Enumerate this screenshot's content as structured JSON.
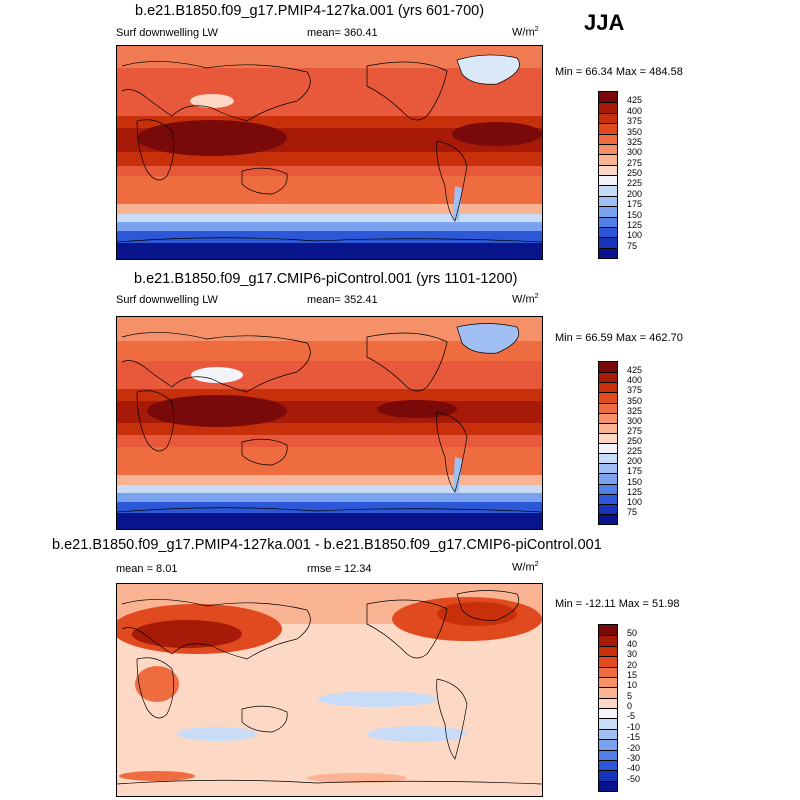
{
  "season": "JJA",
  "units_prefix": "W/m",
  "units_sup": "2",
  "panels": [
    {
      "title": "b.e21.B1850.f09_g17.PMIP4-127ka.001 (yrs 601-700)",
      "left_label": "Surf downwelling LW",
      "stat_text": "mean= 360.41",
      "minmax": "Min =  66.34 Max = 484.58"
    },
    {
      "title": "b.e21.B1850.f09_g17.CMIP6-piControl.001 (yrs 1101-1200)",
      "left_label": "Surf downwelling LW",
      "stat_text": "mean= 352.41",
      "minmax": "Min =  66.59 Max = 462.70"
    },
    {
      "title": "b.e21.B1850.f09_g17.PMIP4-127ka.001 - b.e21.B1850.f09_g17.CMIP6-piControl.001",
      "left_label": "mean =   8.01",
      "stat_text": "rmse =  12.34",
      "minmax": "Min = -12.11 Max =  51.98"
    }
  ],
  "chart_data": [
    {
      "type": "heatmap",
      "title": "b.e21.B1850.f09_g17.PMIP4-127ka.001 (yrs 601-700)",
      "variable": "Surf downwelling LW",
      "units": "W/m2",
      "mean": 360.41,
      "min": 66.34,
      "max": 484.58,
      "colorbar_levels": [
        425,
        400,
        375,
        350,
        325,
        300,
        275,
        250,
        225,
        200,
        175,
        150,
        125,
        100,
        75
      ],
      "colorbar_colors": [
        "#7a0a0a",
        "#a81a08",
        "#c8300c",
        "#e04a1e",
        "#ee6c40",
        "#f59068",
        "#fab494",
        "#fdd8c4",
        "#f2f4fa",
        "#c8dcf8",
        "#a0c0f4",
        "#7aa2ee",
        "#5080e6",
        "#2c58d8",
        "#1834b8",
        "#08148c"
      ]
    },
    {
      "type": "heatmap",
      "title": "b.e21.B1850.f09_g17.CMIP6-piControl.001 (yrs 1101-1200)",
      "variable": "Surf downwelling LW",
      "units": "W/m2",
      "mean": 352.41,
      "min": 66.59,
      "max": 462.7,
      "colorbar_levels": [
        425,
        400,
        375,
        350,
        325,
        300,
        275,
        250,
        225,
        200,
        175,
        150,
        125,
        100,
        75
      ],
      "colorbar_colors": [
        "#7a0a0a",
        "#a81a08",
        "#c8300c",
        "#e04a1e",
        "#ee6c40",
        "#f59068",
        "#fab494",
        "#fdd8c4",
        "#f2f4fa",
        "#c8dcf8",
        "#a0c0f4",
        "#7aa2ee",
        "#5080e6",
        "#2c58d8",
        "#1834b8",
        "#08148c"
      ]
    },
    {
      "type": "heatmap",
      "title": "b.e21.B1850.f09_g17.PMIP4-127ka.001 - b.e21.B1850.f09_g17.CMIP6-piControl.001",
      "units": "W/m2",
      "mean": 8.01,
      "rmse": 12.34,
      "min": -12.11,
      "max": 51.98,
      "colorbar_levels": [
        50,
        40,
        30,
        20,
        15,
        10,
        5,
        0,
        -5,
        -10,
        -15,
        -20,
        -30,
        -40,
        -50
      ],
      "colorbar_colors": [
        "#7a0a0a",
        "#a81a08",
        "#c8300c",
        "#e04a1e",
        "#ee6c40",
        "#f59068",
        "#fab494",
        "#fdd8c4",
        "#f2f4fa",
        "#c8dcf8",
        "#a0c0f4",
        "#7aa2ee",
        "#5080e6",
        "#2c58d8",
        "#1834b8",
        "#08148c"
      ]
    }
  ]
}
